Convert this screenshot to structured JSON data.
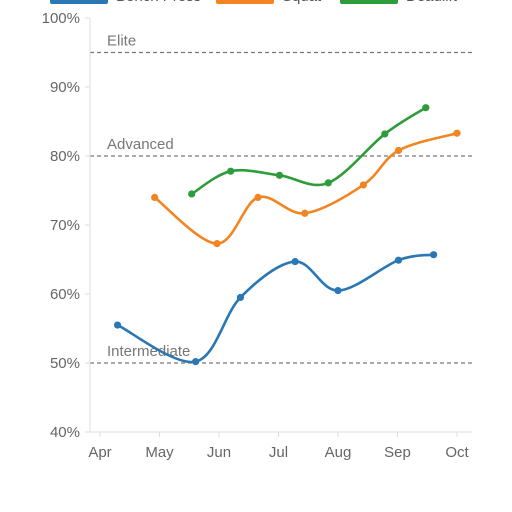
{
  "chart_data": {
    "type": "line",
    "title": "",
    "xlabel": "",
    "ylabel": "",
    "x_ticks": [
      "Apr",
      "May",
      "Jun",
      "Jul",
      "Aug",
      "Sep",
      "Oct"
    ],
    "y_ticks": [
      "40%",
      "50%",
      "60%",
      "70%",
      "80%",
      "90%",
      "100%"
    ],
    "ylim": [
      40,
      100
    ],
    "grid": false,
    "legend_position": "top",
    "reference_lines": [
      {
        "label": "Elite",
        "value": 95
      },
      {
        "label": "Advanced",
        "value": 80
      },
      {
        "label": "Intermediate",
        "value": 50
      }
    ],
    "series": [
      {
        "name": "Bench Press",
        "color": "#2a77b4",
        "points": [
          {
            "x": "2023-04-10",
            "y": 55.5
          },
          {
            "x": "2023-05-20",
            "y": 50.2
          },
          {
            "x": "2023-06-12",
            "y": 59.5
          },
          {
            "x": "2023-07-10",
            "y": 64.7
          },
          {
            "x": "2023-08-01",
            "y": 60.5
          },
          {
            "x": "2023-09-01",
            "y": 64.9
          },
          {
            "x": "2023-09-19",
            "y": 65.7
          }
        ]
      },
      {
        "name": "Squat",
        "color": "#f28522",
        "points": [
          {
            "x": "2023-04-29",
            "y": 74.0
          },
          {
            "x": "2023-05-31",
            "y": 67.3
          },
          {
            "x": "2023-06-21",
            "y": 74.0
          },
          {
            "x": "2023-07-15",
            "y": 71.7
          },
          {
            "x": "2023-08-14",
            "y": 75.8
          },
          {
            "x": "2023-09-01",
            "y": 80.8
          },
          {
            "x": "2023-10-01",
            "y": 83.3
          }
        ]
      },
      {
        "name": "Deadlift",
        "color": "#2e9c3a",
        "points": [
          {
            "x": "2023-05-18",
            "y": 74.5
          },
          {
            "x": "2023-06-07",
            "y": 77.8
          },
          {
            "x": "2023-07-02",
            "y": 77.2
          },
          {
            "x": "2023-07-27",
            "y": 76.1
          },
          {
            "x": "2023-08-25",
            "y": 83.2
          },
          {
            "x": "2023-09-15",
            "y": 87.0
          }
        ]
      }
    ]
  }
}
